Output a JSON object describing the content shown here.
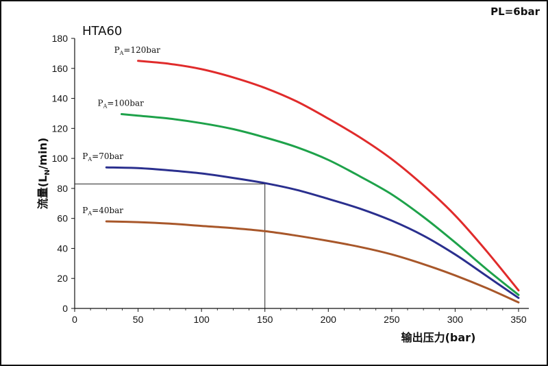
{
  "chart_data": {
    "type": "line",
    "title": "HTA60",
    "corner_label": "PL=6bar",
    "xlabel": "输出压力(bar)",
    "ylabel": "流量(L",
    "ylabel_sub": "N",
    "ylabel_tail": "/min)",
    "xlim": [
      0,
      350
    ],
    "ylim": [
      0,
      180
    ],
    "xticks": [
      0,
      50,
      100,
      150,
      200,
      250,
      300,
      350
    ],
    "yticks": [
      0,
      20,
      40,
      60,
      80,
      100,
      120,
      140,
      160,
      180
    ],
    "grid": false,
    "series": [
      {
        "name": "120bar",
        "label_prefix": "P",
        "label_sub": "A",
        "label_suffix": "=120bar",
        "color": "#e02b2b",
        "x": [
          50,
          75,
          100,
          125,
          150,
          175,
          200,
          225,
          250,
          275,
          300,
          325,
          350
        ],
        "y": [
          165,
          163,
          159.5,
          154,
          147,
          138,
          126.5,
          114,
          99.5,
          82,
          62,
          38,
          12
        ]
      },
      {
        "name": "100bar",
        "label_prefix": "P",
        "label_sub": "A",
        "label_suffix": "=100bar",
        "color": "#1ea24a",
        "x": [
          37,
          50,
          75,
          100,
          125,
          150,
          175,
          200,
          225,
          250,
          275,
          300,
          325,
          350
        ],
        "y": [
          129.5,
          128.5,
          126.5,
          123.5,
          119.5,
          114,
          107.5,
          99,
          88,
          76,
          61,
          44,
          26,
          9
        ]
      },
      {
        "name": "70bar",
        "label_prefix": "P",
        "label_sub": "A",
        "label_suffix": "=70bar",
        "color": "#2a2f8e",
        "x": [
          25,
          50,
          75,
          100,
          125,
          150,
          175,
          200,
          225,
          250,
          275,
          300,
          325,
          350
        ],
        "y": [
          94,
          93.5,
          92,
          90,
          87,
          83.5,
          79,
          73,
          66.5,
          58.5,
          48.5,
          36,
          21.5,
          7
        ]
      },
      {
        "name": "40bar",
        "label_prefix": "P",
        "label_sub": "A",
        "label_suffix": "=40bar",
        "color": "#a8572a",
        "x": [
          25,
          50,
          75,
          100,
          125,
          150,
          175,
          200,
          225,
          250,
          275,
          300,
          325,
          350
        ],
        "y": [
          58,
          57.5,
          56.5,
          55,
          53.5,
          51.5,
          48.5,
          45,
          41,
          36,
          29.5,
          22,
          13.5,
          4
        ]
      }
    ],
    "reference_line": {
      "x": 150,
      "y": 83
    }
  }
}
